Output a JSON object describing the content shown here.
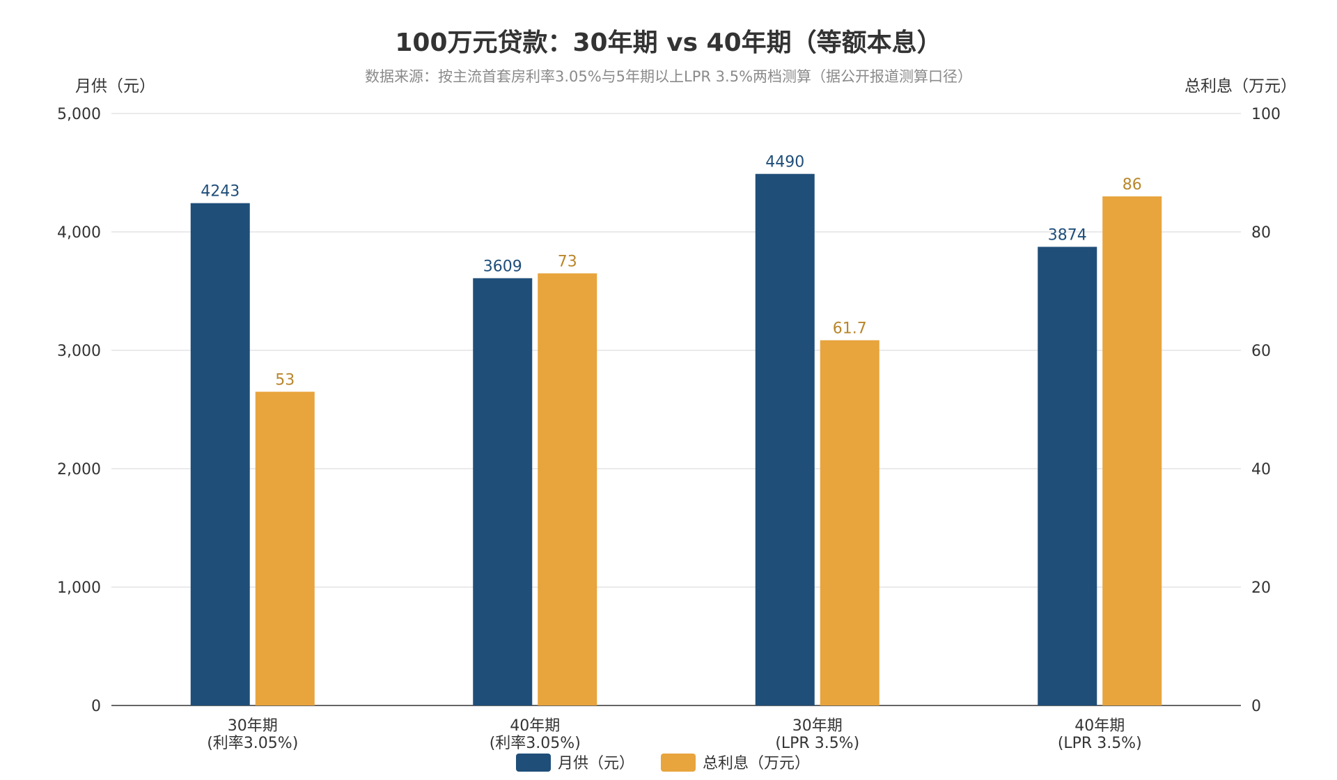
{
  "chart_data": {
    "type": "bar",
    "title": "100万元贷款：30年期 vs 40年期（等额本息）",
    "subtitle": "数据来源：按主流首套房利率3.05%与5年期以上LPR 3.5%两档测算（据公开报道测算口径）",
    "categories": [
      [
        "30年期",
        "(利率3.05%)"
      ],
      [
        "40年期",
        "(利率3.05%)"
      ],
      [
        "30年期",
        "(LPR 3.5%)"
      ],
      [
        "40年期",
        "(LPR 3.5%)"
      ]
    ],
    "y_left": {
      "label": "月供（元）",
      "range": [
        0,
        5000
      ],
      "ticks": [
        0,
        1000,
        2000,
        3000,
        4000,
        5000
      ],
      "tick_labels": [
        "0",
        "1,000",
        "2,000",
        "3,000",
        "4,000",
        "5,000"
      ]
    },
    "y_right": {
      "label": "总利息（万元）",
      "range": [
        0,
        100
      ],
      "ticks": [
        0,
        20,
        40,
        60,
        80,
        100
      ],
      "tick_labels": [
        "0",
        "20",
        "40",
        "60",
        "80",
        "100"
      ]
    },
    "series": [
      {
        "name": "月供（元）",
        "axis": "left",
        "color": "#1f4e79",
        "label_color": "#1f4e79",
        "values": [
          4243,
          3609,
          4490,
          3874
        ],
        "value_labels": [
          "4243",
          "3609",
          "4490",
          "3874"
        ]
      },
      {
        "name": "总利息（万元）",
        "axis": "right",
        "color": "#e8a43d",
        "label_color": "#b8862b",
        "values": [
          53,
          73,
          61.7,
          86
        ],
        "value_labels": [
          "53",
          "73",
          "61.7",
          "86"
        ]
      }
    ],
    "grid": true,
    "legend_position": "bottom-center"
  }
}
